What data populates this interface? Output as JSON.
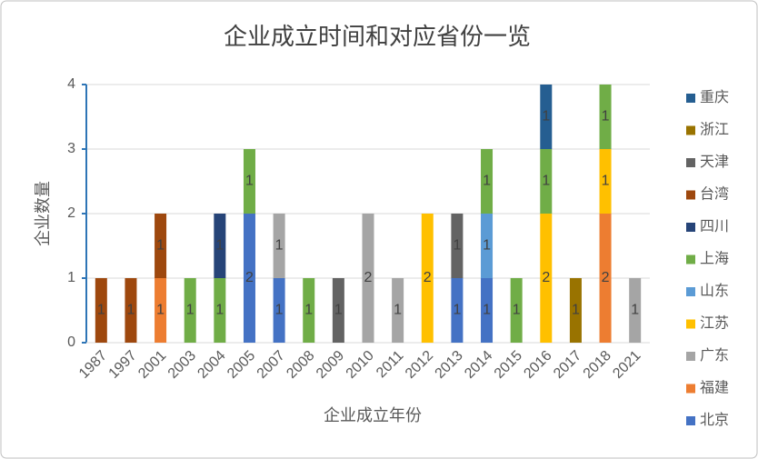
{
  "chart_data": {
    "type": "stacked_bar",
    "title": "企业成立时间和对应省份一览",
    "x_label": "企业成立年份",
    "y_label": "企业数量",
    "categories": [
      "1987",
      "1997",
      "2001",
      "2003",
      "2004",
      "2005",
      "2007",
      "2008",
      "2009",
      "2010",
      "2011",
      "2012",
      "2013",
      "2014",
      "2015",
      "2016",
      "2017",
      "2018",
      "2021"
    ],
    "series": [
      {
        "name": "北京",
        "color": "#4472c4",
        "values": [
          null,
          null,
          null,
          null,
          null,
          2,
          1,
          null,
          null,
          null,
          null,
          null,
          1,
          1,
          null,
          null,
          null,
          null,
          null
        ]
      },
      {
        "name": "福建",
        "color": "#ed7d31",
        "values": [
          null,
          null,
          1,
          null,
          null,
          null,
          null,
          null,
          null,
          null,
          null,
          null,
          null,
          null,
          null,
          null,
          null,
          2,
          null
        ]
      },
      {
        "name": "广东",
        "color": "#a5a5a5",
        "values": [
          null,
          null,
          null,
          null,
          null,
          null,
          1,
          null,
          null,
          2,
          1,
          null,
          null,
          null,
          null,
          null,
          null,
          null,
          1
        ]
      },
      {
        "name": "江苏",
        "color": "#ffc000",
        "values": [
          null,
          null,
          null,
          null,
          null,
          null,
          null,
          null,
          null,
          null,
          null,
          2,
          null,
          null,
          null,
          2,
          null,
          1,
          null
        ]
      },
      {
        "name": "山东",
        "color": "#5b9bd5",
        "values": [
          null,
          null,
          null,
          null,
          null,
          null,
          null,
          null,
          null,
          null,
          null,
          null,
          null,
          1,
          null,
          null,
          null,
          null,
          null
        ]
      },
      {
        "name": "上海",
        "color": "#70ad47",
        "values": [
          null,
          null,
          null,
          1,
          1,
          1,
          null,
          1,
          null,
          null,
          null,
          null,
          null,
          1,
          1,
          1,
          null,
          1,
          null
        ]
      },
      {
        "name": "四川",
        "color": "#264478",
        "values": [
          null,
          null,
          null,
          null,
          1,
          null,
          null,
          null,
          null,
          null,
          null,
          null,
          null,
          null,
          null,
          null,
          null,
          null,
          null
        ]
      },
      {
        "name": "台湾",
        "color": "#9e480e",
        "values": [
          1,
          1,
          1,
          null,
          null,
          null,
          null,
          null,
          null,
          null,
          null,
          null,
          null,
          null,
          null,
          null,
          null,
          null,
          null
        ]
      },
      {
        "name": "天津",
        "color": "#636363",
        "values": [
          null,
          null,
          null,
          null,
          null,
          null,
          null,
          null,
          1,
          null,
          null,
          null,
          1,
          null,
          null,
          null,
          null,
          null,
          null
        ]
      },
      {
        "name": "浙江",
        "color": "#997300",
        "values": [
          null,
          null,
          null,
          null,
          null,
          null,
          null,
          null,
          null,
          null,
          null,
          null,
          null,
          null,
          null,
          null,
          1,
          null,
          null
        ]
      },
      {
        "name": "重庆",
        "color": "#255e91",
        "values": [
          null,
          null,
          null,
          null,
          null,
          null,
          null,
          null,
          null,
          null,
          null,
          null,
          null,
          null,
          null,
          1,
          null,
          null,
          null
        ]
      }
    ],
    "ylim": [
      0,
      4
    ],
    "yticks": [
      0,
      1,
      2,
      3,
      4
    ],
    "grid": true,
    "legend": "right"
  }
}
